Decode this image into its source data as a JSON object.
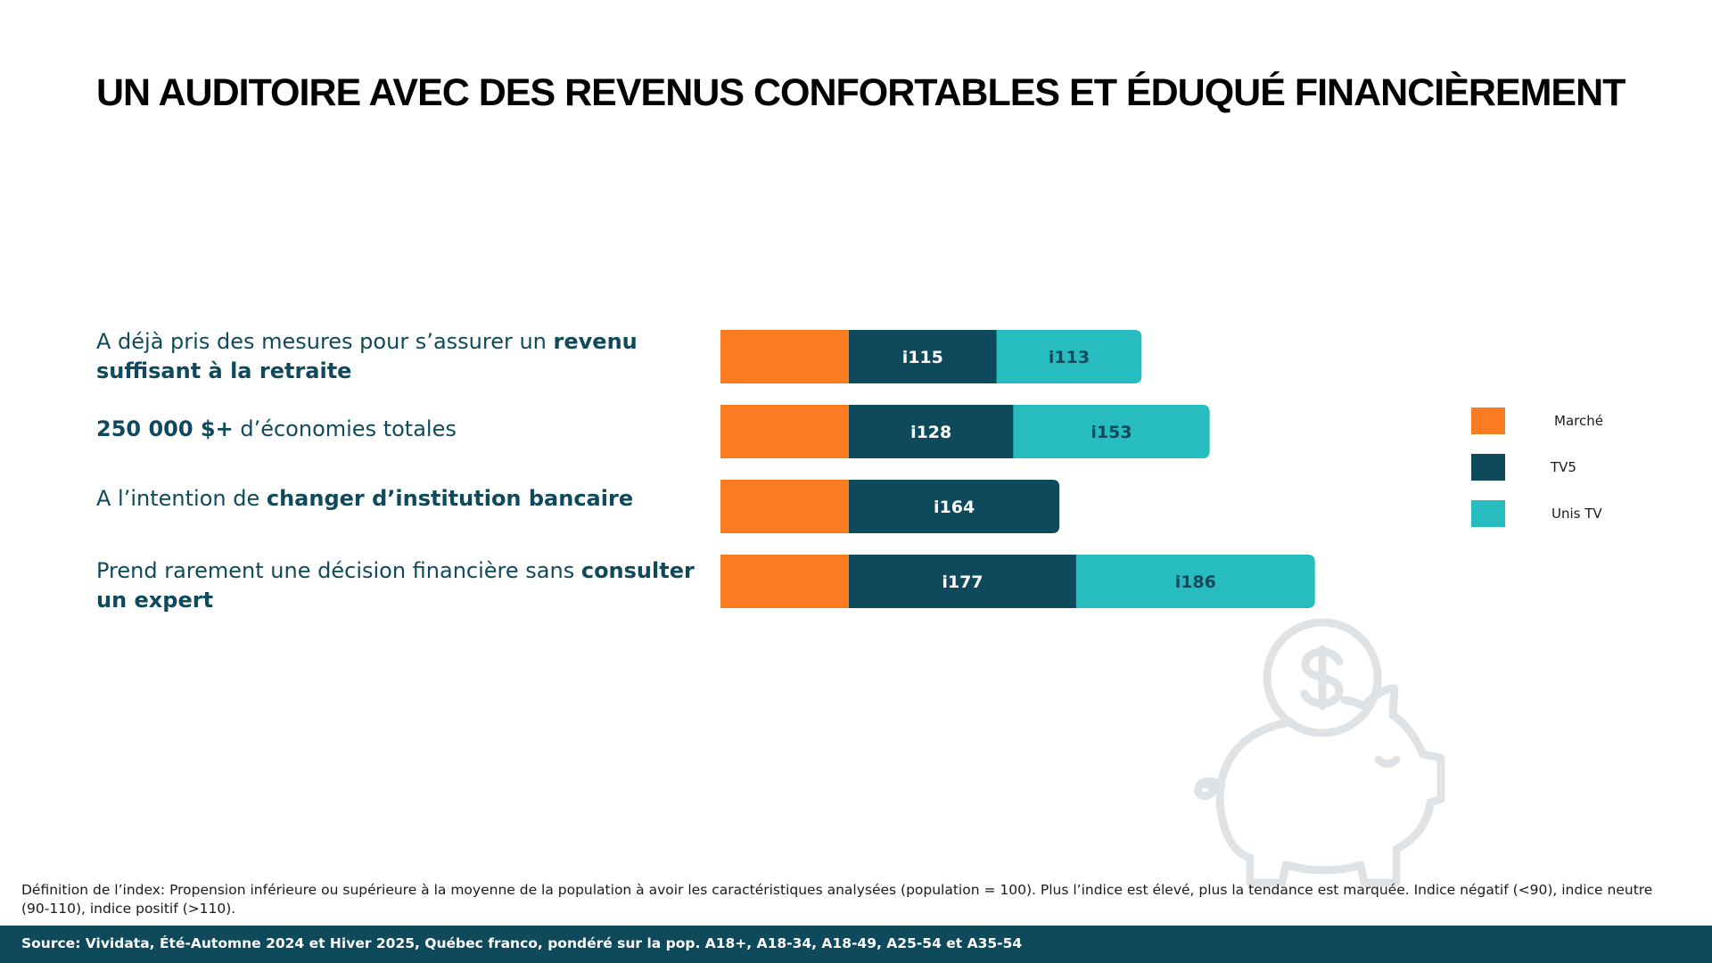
{
  "title": "UN AUDITOIRE AVEC DES REVENUS CONFORTABLES ET ÉDUQUÉ FINANCIÈREMENT",
  "rows": [
    {
      "label_parts": [
        {
          "text": "A déjà pris des mesures pour s’assurer un ",
          "bold": false
        },
        {
          "text": "revenu suffisant à la retraite",
          "bold": true
        }
      ]
    },
    {
      "label_parts": [
        {
          "text": "250 000 $+",
          "bold": true
        },
        {
          "text": " d’économies totales",
          "bold": false
        }
      ]
    },
    {
      "label_parts": [
        {
          "text": "A l’intention de ",
          "bold": false
        },
        {
          "text": "changer d’institution bancaire",
          "bold": true
        }
      ]
    },
    {
      "label_parts": [
        {
          "text": "Prend rarement une décision financière sans ",
          "bold": false
        },
        {
          "text": "consulter un expert",
          "bold": true
        }
      ]
    }
  ],
  "chart_data": {
    "type": "bar",
    "orientation": "horizontal",
    "stacked": true,
    "categories": [
      "A déjà pris des mesures pour s’assurer un revenu suffisant à la retraite",
      "250 000 $+ d’économies totales",
      "A l’intention de changer d’institution bancaire",
      "Prend rarement une décision financière sans consulter un expert"
    ],
    "series": [
      {
        "name": "Marché",
        "color": "#f97b22",
        "values": [
          100,
          100,
          100,
          100
        ],
        "labels": [
          null,
          null,
          null,
          null
        ]
      },
      {
        "name": "TV5",
        "color": "#0f4a5c",
        "values": [
          115,
          128,
          164,
          177
        ],
        "labels": [
          "i115",
          "i128",
          "i164",
          "i177"
        ]
      },
      {
        "name": "Unis TV",
        "color": "#27bcbf",
        "values": [
          113,
          153,
          null,
          186
        ],
        "labels": [
          "i113",
          "i153",
          null,
          "i186"
        ]
      }
    ],
    "legend_position": "right",
    "grid": false
  },
  "legend": [
    {
      "label": "Marché",
      "color": "#f97b22"
    },
    {
      "label": "TV5",
      "color": "#0f4a5c"
    },
    {
      "label": "Unis TV",
      "color": "#27bcbf"
    }
  ],
  "footnote": "Définition de l’index: Propension inférieure ou supérieure à la moyenne de la population à avoir les caractéristiques analysées (population = 100). Plus l’indice est élevé, plus la tendance est marquée. Indice négatif (<90), indice neutre (90-110), indice positif (>110).",
  "source": "Source: Vividata, Été-Automne 2024 et Hiver 2025, Québec franco, pondéré sur la pop. A18+, A18-34, A18-49, A25-54 et A35-54",
  "decor": {
    "icon": "piggy-bank-icon",
    "color": "#dfe3e6"
  }
}
